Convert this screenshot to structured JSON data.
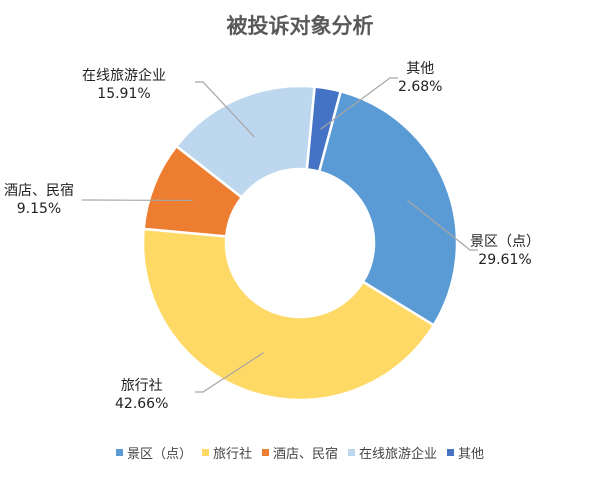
{
  "chart_data": {
    "type": "pie",
    "donut": true,
    "title": "被投诉对象分析",
    "categories": [
      "景区（点）",
      "旅行社",
      "酒店、民宿",
      "在线旅游企业",
      "其他"
    ],
    "values": [
      29.61,
      42.66,
      9.15,
      15.91,
      2.68
    ],
    "value_labels": [
      "29.61%",
      "42.66%",
      "9.15%",
      "15.91%",
      "2.68%"
    ],
    "colors": [
      "#5B9BD5",
      "#FFD966",
      "#ED7D31",
      "#BDD7EE",
      "#4472C4"
    ],
    "legend": "bottom"
  }
}
